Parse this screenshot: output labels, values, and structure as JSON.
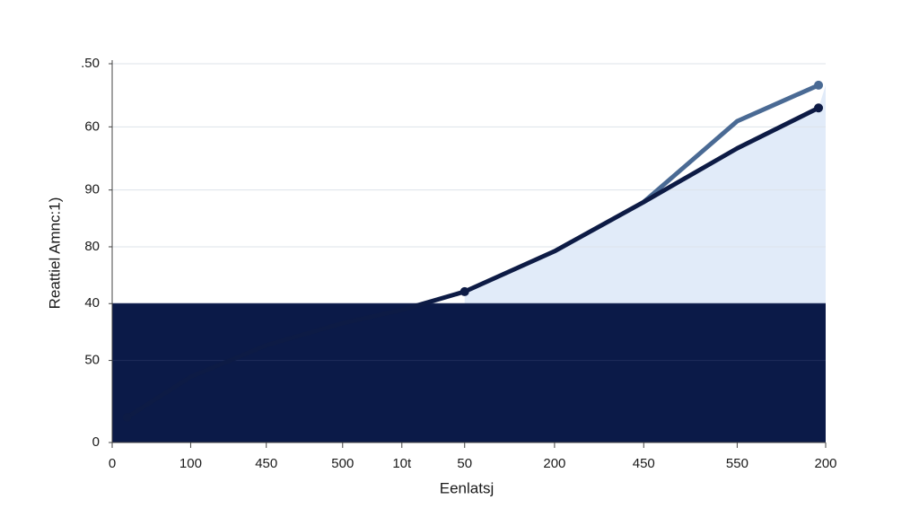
{
  "chart_data": {
    "type": "line",
    "y_label": "Reattiel Amnc:1)",
    "x_label": "Eenlatsj",
    "xlim": [
      0,
      100
    ],
    "ylim": [
      0,
      60
    ],
    "xticks": [
      0,
      {
        "value": 11,
        "label": "100"
      },
      {
        "value": 21.6,
        "label": "450"
      },
      {
        "value": 32.3,
        "label": "500"
      },
      {
        "value": 40.6,
        "label": "10t"
      },
      {
        "value": 49.4,
        "label": "50"
      },
      {
        "value": 62,
        "label": "200"
      },
      {
        "value": 74.5,
        "label": "450"
      },
      {
        "value": 87.6,
        "label": "550"
      },
      {
        "value": 100,
        "label": "200"
      }
    ],
    "yticks": [
      0,
      {
        "value": 13,
        "label": "50"
      },
      {
        "value": 22,
        "label": "40"
      },
      {
        "value": 31,
        "label": "80"
      },
      {
        "value": 40,
        "label": "90"
      },
      {
        "value": 50,
        "label": "60"
      },
      {
        "value": 60,
        "label": ".50"
      }
    ],
    "grid": true,
    "x": [
      2.1,
      11,
      21.6,
      32.3,
      40.6,
      49.4,
      62,
      74.5,
      87.6,
      99
    ],
    "series": [
      {
        "color": "#0d1b45",
        "values": [
          4,
          10.4,
          15.4,
          18.9,
          21,
          23.9,
          30.3,
          38.1,
          46.6,
          53
        ]
      },
      {
        "color": "#4a6a94",
        "values": [
          null,
          null,
          null,
          null,
          null,
          null,
          null,
          38.1,
          50.9,
          56.6
        ]
      }
    ]
  }
}
